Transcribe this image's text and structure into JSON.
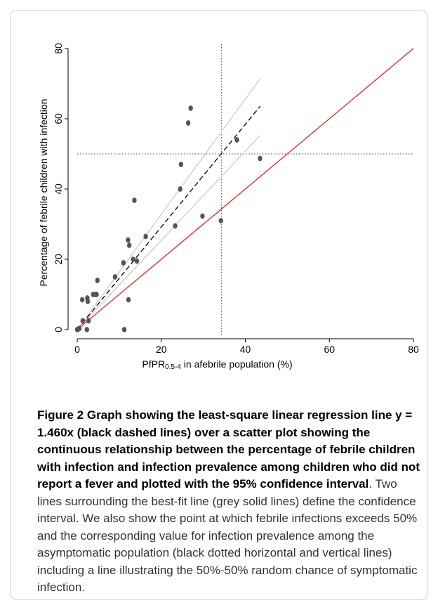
{
  "figure": {
    "caption_bold": "Figure 2 Graph showing the least-square linear regression line y = 1.460x (black dashed lines) over a scatter plot showing the continuous relationship between the percentage of febrile children with infection and infection prevalence among children who did not report a fever and plotted with the 95% confidence interval",
    "caption_rest": ". Two lines surrounding the best-fit line (grey solid lines) define the confidence interval. We also show the point at which febrile infections exceeds 50% and the corresponding value for infection prevalence among the asymptomatic population (black dotted horizontal and vertical lines) including a line illustrating the 50%-50% random chance of symptomatic infection."
  },
  "chart_data": {
    "type": "scatter",
    "title": "",
    "xlabel_main": "PfPR",
    "xlabel_sub": "0.5-4",
    "xlabel_rest": " in afebrile population (%)",
    "ylabel": "Percentage of febrile children with infection",
    "xlim": [
      0,
      80
    ],
    "ylim": [
      0,
      80
    ],
    "xticks": [
      0,
      20,
      40,
      60,
      80
    ],
    "yticks": [
      0,
      20,
      40,
      60,
      80
    ],
    "grid": false,
    "points": [
      {
        "x": 0,
        "y": 0
      },
      {
        "x": 0.3,
        "y": 0.2
      },
      {
        "x": 0.5,
        "y": 0.3
      },
      {
        "x": 1.2,
        "y": 8.5
      },
      {
        "x": 1.3,
        "y": 2.5
      },
      {
        "x": 2.3,
        "y": 0
      },
      {
        "x": 2.4,
        "y": 9
      },
      {
        "x": 2.5,
        "y": 8
      },
      {
        "x": 2.7,
        "y": 2.5
      },
      {
        "x": 3.8,
        "y": 10
      },
      {
        "x": 4.2,
        "y": 10
      },
      {
        "x": 4.6,
        "y": 10
      },
      {
        "x": 4.8,
        "y": 14
      },
      {
        "x": 9,
        "y": 15
      },
      {
        "x": 11,
        "y": 19
      },
      {
        "x": 11.2,
        "y": 0
      },
      {
        "x": 12.1,
        "y": 25.5
      },
      {
        "x": 12.2,
        "y": 8.5
      },
      {
        "x": 12.4,
        "y": 24
      },
      {
        "x": 13.3,
        "y": 20
      },
      {
        "x": 13.6,
        "y": 36.8
      },
      {
        "x": 14.2,
        "y": 19.5
      },
      {
        "x": 16.3,
        "y": 26.5
      },
      {
        "x": 23.3,
        "y": 29.5
      },
      {
        "x": 24.5,
        "y": 40
      },
      {
        "x": 24.7,
        "y": 47
      },
      {
        "x": 26.4,
        "y": 58.8
      },
      {
        "x": 27,
        "y": 63
      },
      {
        "x": 29.8,
        "y": 32.3
      },
      {
        "x": 34.2,
        "y": 31
      },
      {
        "x": 38,
        "y": 54
      },
      {
        "x": 43.5,
        "y": 48.7
      }
    ],
    "regression": {
      "label": "y = 1.460x",
      "slope": 1.46,
      "x_range": [
        0,
        43.5
      ]
    },
    "confidence_interval": {
      "upper_slope": 1.64,
      "lower_slope": 1.27,
      "x_range": [
        0,
        43.5
      ]
    },
    "threshold_y": 50,
    "threshold_x": 34.3,
    "reference_line": {
      "slope": 1,
      "x_range": [
        0,
        80
      ]
    },
    "colors": {
      "points": "#555555",
      "regression": "#000000",
      "ci": "#c8c8c8",
      "reference": "#e8201c",
      "threshold": "#444444",
      "axis": "#000000"
    }
  }
}
